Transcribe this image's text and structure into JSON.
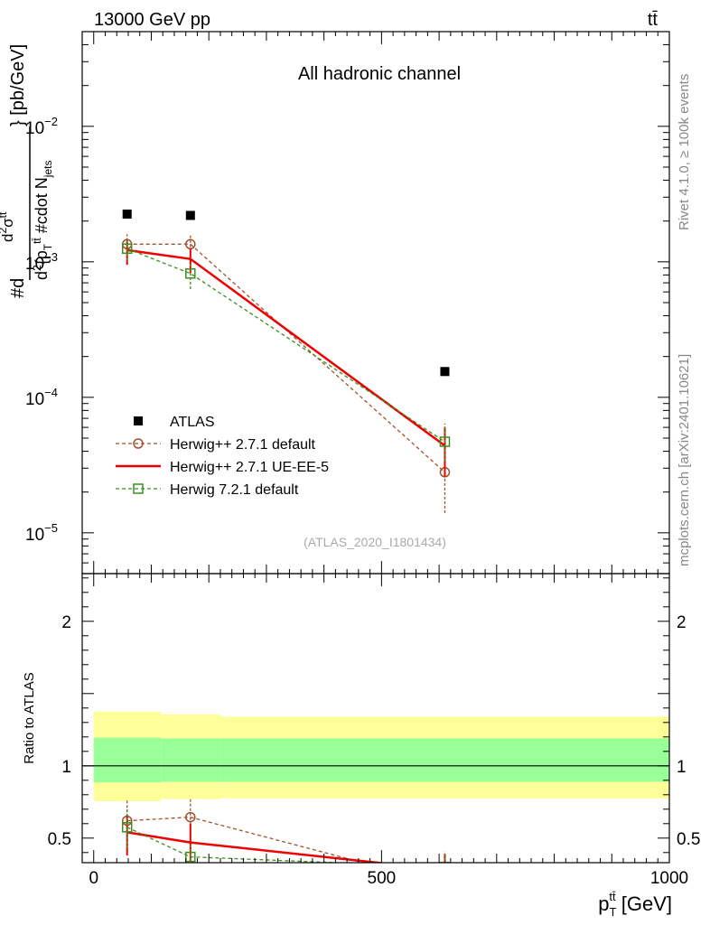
{
  "header": {
    "beam": "13000 GeV pp",
    "process": "tt̄",
    "side_rivet": "Rivet 4.1.0, ≥ 100k events",
    "side_mcplots": "mcplots.cern.ch [arXiv:2401.10621]"
  },
  "chart_data": [
    {
      "type": "scatter",
      "panel": "main",
      "title": "All hadronic channel",
      "watermark": "(ATLAS_2020_I1801434)",
      "ylabel": "#d d²σ^{tt̄} / d²{p_T^{tt̄} #cdot N_jets} [pb/GeV]",
      "yscale": "log",
      "ylim": [
        5e-06,
        0.05
      ],
      "xlim": [
        -20,
        1000
      ],
      "y_ticks": [
        {
          "value": 0.01,
          "label": "10",
          "exp": "−2"
        },
        {
          "value": 0.001,
          "label": "10",
          "exp": "−3"
        },
        {
          "value": 0.0001,
          "label": "10",
          "exp": "−4"
        },
        {
          "value": 1e-05,
          "label": "10",
          "exp": "−5"
        }
      ],
      "legend_position": "lower-left",
      "series": [
        {
          "name": "ATLAS",
          "style": "marker",
          "marker": "filled-square",
          "color": "#000000",
          "x": [
            58,
            168,
            610
          ],
          "y": [
            0.00225,
            0.0022,
            0.000155
          ]
        },
        {
          "name": "Herwig++ 2.7.1 default",
          "style": "dashed",
          "marker": "open-circle",
          "color": "#a0522d",
          "x": [
            58,
            168,
            610
          ],
          "y": [
            0.00135,
            0.00135,
            2.8e-05
          ],
          "y_low": [
            0.00105,
            0.0011,
            1.4e-05
          ],
          "y_high": [
            0.0016,
            0.0016,
            6e-05
          ]
        },
        {
          "name": "Herwig++ 2.7.1 UE-EE-5",
          "style": "solid",
          "marker": "none",
          "color": "#ee0000",
          "x": [
            58,
            168,
            610
          ],
          "y": [
            0.00122,
            0.00105,
            4.4e-05
          ],
          "y_low": [
            0.00095,
            0.00083,
            2.6e-05
          ],
          "y_high": [
            0.00145,
            0.00125,
            6e-05
          ]
        },
        {
          "name": "Herwig 7.2.1 default",
          "style": "dashed",
          "marker": "open-square",
          "color": "#3a8f20",
          "x": [
            58,
            168,
            610
          ],
          "y": [
            0.00125,
            0.00082,
            4.7e-05
          ],
          "y_low": [
            0.00102,
            0.00063,
            3.4e-05
          ],
          "y_high": [
            0.00145,
            0.00098,
            6.4e-05
          ]
        }
      ]
    },
    {
      "type": "line",
      "panel": "ratio",
      "ylabel": "Ratio to ATLAS",
      "xlabel": "p_T^{tt̄} [GeV]",
      "xlabel_parts": {
        "base": "p",
        "sup": "tt̄",
        "sub": "T",
        "rest": " [GeV]"
      },
      "xlim": [
        -20,
        1000
      ],
      "ylim": [
        0.33,
        2.33
      ],
      "x_ticks": [
        {
          "value": 0,
          "label": "0"
        },
        {
          "value": 500,
          "label": "500"
        },
        {
          "value": 1000,
          "label": "1000"
        }
      ],
      "y_ticks": [
        {
          "value": 0.5,
          "label": "0.5"
        },
        {
          "value": 1,
          "label": "1"
        },
        {
          "value": 2,
          "label": "2"
        }
      ],
      "bands": [
        {
          "x0": 0,
          "x1": 117,
          "stat": [
            0.885,
            1.195
          ],
          "total": [
            0.755,
            1.375
          ]
        },
        {
          "x0": 117,
          "x1": 220,
          "stat": [
            0.89,
            1.19
          ],
          "total": [
            0.77,
            1.355
          ]
        },
        {
          "x0": 220,
          "x1": 1000,
          "stat": [
            0.89,
            1.19
          ],
          "total": [
            0.775,
            1.34
          ]
        }
      ],
      "band_colors": {
        "stat": "#99ff99",
        "total": "#ffff99"
      },
      "series": [
        {
          "name": "Herwig++ 2.7.1 default",
          "style": "dashed",
          "marker": "open-circle",
          "color": "#a0522d",
          "x": [
            58,
            168,
            610
          ],
          "y": [
            0.62,
            0.645,
            0.18
          ],
          "y_low": [
            0.49,
            0.5,
            0.09
          ],
          "y_high": [
            0.76,
            0.78,
            0.39
          ]
        },
        {
          "name": "Herwig++ 2.7.1 UE-EE-5",
          "style": "solid",
          "marker": "none",
          "color": "#ee0000",
          "x": [
            58,
            168,
            610
          ],
          "y": [
            0.54,
            0.47,
            0.28
          ],
          "y_low": [
            0.38,
            0.34,
            0.17
          ],
          "y_high": [
            0.66,
            0.6,
            0.39
          ]
        },
        {
          "name": "Herwig 7.2.1 default",
          "style": "dashed",
          "marker": "open-square",
          "color": "#3a8f20",
          "x": [
            58,
            168,
            610
          ],
          "y": [
            0.575,
            0.37,
            0.3
          ],
          "y_low": [
            0.43,
            0.28,
            0.22
          ],
          "y_high": [
            0.7,
            0.46,
            0.41
          ]
        }
      ]
    }
  ]
}
